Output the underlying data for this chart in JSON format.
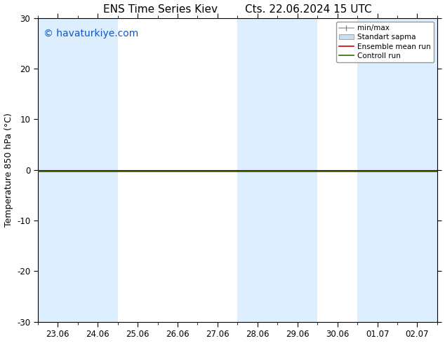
{
  "title": "ENS Time Series Kiev        Cts. 22.06.2024 15 UTC",
  "ylabel": "Temperature 850 hPa (°C)",
  "watermark": "© havaturkiye.com",
  "ylim": [
    -30,
    30
  ],
  "yticks": [
    -30,
    -20,
    -10,
    0,
    10,
    20,
    30
  ],
  "xtick_labels": [
    "23.06",
    "24.06",
    "25.06",
    "26.06",
    "27.06",
    "28.06",
    "29.06",
    "30.06",
    "01.07",
    "02.07"
  ],
  "bg_color": "#ffffff",
  "plot_bg_color": "#ffffff",
  "shaded_col_color": "#ddeeff",
  "shaded_columns": [
    0,
    1,
    5,
    6,
    8,
    9
  ],
  "legend_entries": [
    "min/max",
    "Standart sapma",
    "Ensemble mean run",
    "Controll run"
  ],
  "flat_value": -0.2,
  "title_fontsize": 11,
  "label_fontsize": 9,
  "tick_fontsize": 8.5,
  "watermark_color": "#1155cc",
  "watermark_fontsize": 10
}
